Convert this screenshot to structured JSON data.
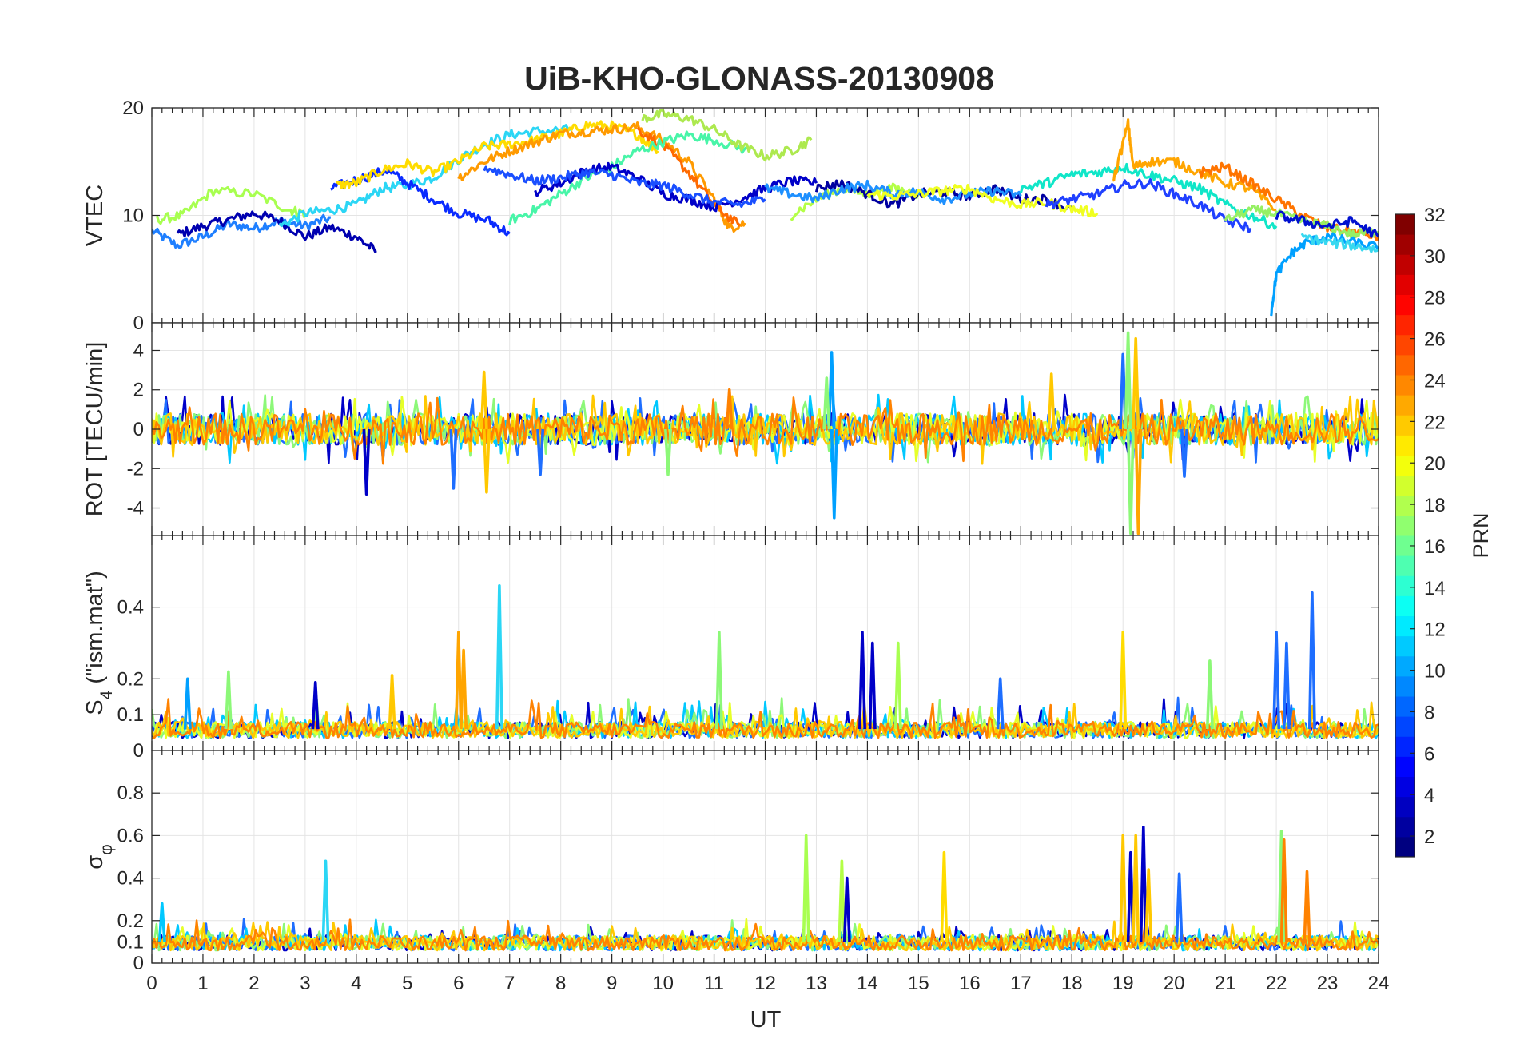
{
  "chart_data": [
    {
      "type": "line",
      "panel": "vtec",
      "title": "UiB-KHO-GLONASS-20130908",
      "xlabel": "",
      "ylabel": "VTEC",
      "xlim": [
        0,
        24
      ],
      "ylim": [
        0,
        20
      ],
      "yticks": [
        "0",
        "10",
        "20"
      ],
      "grid": true,
      "series": [
        {
          "color": "#1f7fff",
          "x": [
            0,
            0.5,
            1,
            1.5,
            2,
            2.5,
            3,
            3.5
          ],
          "y": [
            8.6,
            7.2,
            8.0,
            9.2,
            8.8,
            9.5,
            9.0,
            9.8
          ]
        },
        {
          "color": "#0000b0",
          "x": [
            0.5,
            1,
            1.5,
            2,
            2.5,
            3,
            3.5,
            4,
            4.4
          ],
          "y": [
            8.2,
            9.0,
            9.6,
            10.2,
            9.5,
            8.0,
            8.9,
            8.0,
            6.6
          ]
        },
        {
          "color": "#a8ff50",
          "x": [
            0.1,
            0.6,
            1.2,
            2.0,
            2.7,
            3.0
          ],
          "y": [
            9.6,
            10.0,
            12.3,
            12.0,
            10.5,
            10.2
          ]
        },
        {
          "color": "#2bd6f5",
          "x": [
            2.5,
            3,
            3.5,
            4,
            4.5,
            5,
            5.5,
            6,
            6.5,
            7,
            7.5,
            8.2
          ],
          "y": [
            9.0,
            10.2,
            10.5,
            11.0,
            12.5,
            12.8,
            13.5,
            15.2,
            16.6,
            17.5,
            17.8,
            18.0
          ]
        },
        {
          "color": "#0a2bff",
          "x": [
            3.5,
            4,
            4.6,
            5,
            5.5,
            6,
            6.6,
            7
          ],
          "y": [
            12.5,
            13.3,
            14.2,
            13.0,
            11.5,
            10.2,
            9.5,
            8.3
          ]
        },
        {
          "color": "#ffdc00",
          "x": [
            3.6,
            4,
            4.5,
            5,
            5.5,
            6,
            6.5,
            7,
            7.5,
            8,
            8.5,
            9,
            9.5,
            9.9
          ],
          "y": [
            12.8,
            13.0,
            14.2,
            14.8,
            14.0,
            15.0,
            16.4,
            16.6,
            17.0,
            17.6,
            18.4,
            18.3,
            17.5,
            16.0
          ]
        },
        {
          "color": "#ff9a00",
          "x": [
            6,
            6.5,
            7,
            7.5,
            8,
            8.5,
            9,
            9.5,
            10,
            10.5,
            11,
            11.3,
            11.6
          ],
          "y": [
            13.5,
            15.0,
            16.0,
            16.8,
            17.6,
            17.8,
            18.0,
            18.2,
            17.0,
            15.0,
            11.5,
            8.8,
            9.3
          ]
        },
        {
          "color": "#ff6a00",
          "x": [
            9.5,
            10,
            10.5,
            11,
            11.5
          ],
          "y": [
            18.0,
            16.5,
            14.0,
            11.0,
            9.0
          ]
        },
        {
          "color": "#48f5a8",
          "x": [
            7,
            7.5,
            8,
            8.5,
            9,
            9.5,
            10,
            10.5,
            11,
            11.7
          ],
          "y": [
            9.5,
            10.5,
            12.0,
            13.5,
            14.5,
            16.0,
            16.8,
            17.5,
            17.0,
            16.0
          ]
        },
        {
          "color": "#ade94f",
          "x": [
            9.6,
            10,
            10.5,
            11,
            11.5,
            12,
            12.5,
            12.9
          ],
          "y": [
            19.0,
            19.4,
            19.0,
            18.0,
            16.5,
            15.5,
            16.0,
            17.0
          ]
        },
        {
          "color": "#0000c8",
          "x": [
            7.5,
            8,
            8.5,
            9,
            9.5,
            10,
            10.5,
            11,
            11.5,
            12,
            12.5,
            13
          ],
          "y": [
            12.2,
            13.0,
            14.2,
            14.5,
            13.5,
            12.0,
            11.5,
            10.8,
            11.5,
            12.5,
            13.2,
            13.0
          ]
        },
        {
          "color": "#1a4fff",
          "x": [
            6.5,
            7,
            7.5,
            8,
            8.5,
            9,
            9.5,
            10,
            10.5,
            11,
            11.5,
            12
          ],
          "y": [
            14.5,
            13.8,
            13.2,
            13.5,
            14.0,
            13.8,
            13.0,
            12.8,
            12.0,
            11.2,
            11.0,
            11.5
          ]
        },
        {
          "color": "#b4ff46",
          "x": [
            12.5,
            13,
            13.5,
            14,
            14.5,
            15
          ],
          "y": [
            10.0,
            11.5,
            12.5,
            12.0,
            12.5,
            12.0
          ]
        },
        {
          "color": "#0000a0",
          "x": [
            13,
            13.5,
            14,
            14.5,
            15,
            15.5,
            16,
            16.5,
            17,
            17.5,
            18
          ],
          "y": [
            12.5,
            13.0,
            12.0,
            11.0,
            12.0,
            12.2,
            11.8,
            12.5,
            11.5,
            11.5,
            10.5
          ]
        },
        {
          "color": "#1e90ff",
          "x": [
            12,
            12.5,
            13,
            13.5,
            14,
            14.5,
            15,
            15.5,
            16,
            16.5,
            17
          ],
          "y": [
            12.5,
            12.0,
            11.5,
            12.5,
            12.8,
            12.0,
            12.2,
            11.5,
            12.0,
            12.3,
            11.8
          ]
        },
        {
          "color": "#f0ff20",
          "x": [
            14,
            14.5,
            15,
            15.5,
            16,
            16.5,
            17,
            17.5,
            18,
            18.5
          ],
          "y": [
            12.0,
            11.8,
            12.0,
            12.3,
            12.5,
            11.5,
            11.0,
            11.2,
            10.6,
            10.2
          ]
        },
        {
          "color": "#10e6c8",
          "x": [
            17,
            17.5,
            18,
            18.5,
            19,
            19.5,
            20,
            20.5,
            21,
            21.5,
            22
          ],
          "y": [
            12.5,
            13.0,
            13.8,
            14.0,
            14.5,
            13.8,
            13.2,
            12.5,
            11.0,
            10.0,
            9.0
          ]
        },
        {
          "color": "#2040ff",
          "x": [
            17.5,
            18,
            18.5,
            19,
            19.5,
            20,
            20.5,
            21,
            21.5
          ],
          "y": [
            11.0,
            11.5,
            12.0,
            12.8,
            13.0,
            12.0,
            11.0,
            9.5,
            8.8
          ]
        },
        {
          "color": "#ffa500",
          "x": [
            18.8,
            19.1,
            19.2,
            19.5,
            20,
            20.5,
            21,
            21.5,
            22
          ],
          "y": [
            13.0,
            18.5,
            14.5,
            15.0,
            15.0,
            14.0,
            13.0,
            12.5,
            10.5
          ]
        },
        {
          "color": "#ff7400",
          "x": [
            20.5,
            21,
            21.5,
            22,
            22.5,
            23,
            23.5,
            24
          ],
          "y": [
            14.0,
            14.5,
            13.0,
            11.5,
            10.0,
            8.8,
            8.5,
            8.0
          ]
        },
        {
          "color": "#96f064",
          "x": [
            21,
            21.5,
            22,
            22.5,
            23,
            23.5,
            24
          ],
          "y": [
            9.5,
            10.5,
            10.2,
            9.5,
            9.0,
            8.2,
            8.5
          ]
        },
        {
          "color": "#00a0ff",
          "x": [
            21.9,
            22,
            22.3,
            22.6,
            23,
            23.5,
            24
          ],
          "y": [
            1.0,
            4.5,
            6.5,
            7.5,
            8.0,
            7.5,
            7.0
          ]
        },
        {
          "color": "#0010d0",
          "x": [
            22,
            22.5,
            23,
            23.5,
            24
          ],
          "y": [
            10.0,
            9.5,
            9.0,
            9.5,
            8.0
          ]
        },
        {
          "color": "#38d8f0",
          "x": [
            22.5,
            23,
            23.5,
            24
          ],
          "y": [
            8.0,
            7.5,
            7.2,
            6.8
          ]
        }
      ]
    },
    {
      "type": "line",
      "panel": "rot",
      "xlabel": "",
      "ylabel": "ROT [TECU/min]",
      "xlim": [
        0,
        24
      ],
      "ylim": [
        -5.4,
        5.4
      ],
      "yticks": [
        "-4",
        "-2",
        "0",
        "2",
        "4"
      ],
      "grid": true,
      "noise_series_colors": [
        "#0000c8",
        "#1e6eff",
        "#00c8ff",
        "#8cf878",
        "#e6ff28",
        "#ffc800",
        "#ff8200"
      ],
      "spikes": [
        {
          "x": 4.2,
          "y": -3.3,
          "color": "#0000c8"
        },
        {
          "x": 5.9,
          "y": -3.0,
          "color": "#1e6eff"
        },
        {
          "x": 6.5,
          "y": 2.9,
          "color": "#ffc800"
        },
        {
          "x": 6.55,
          "y": -3.2,
          "color": "#ffc800"
        },
        {
          "x": 7.6,
          "y": -2.3,
          "color": "#1e6eff"
        },
        {
          "x": 10.1,
          "y": -2.3,
          "color": "#8cf878"
        },
        {
          "x": 11.3,
          "y": 2.0,
          "color": "#ff8200"
        },
        {
          "x": 13.3,
          "y": 3.9,
          "color": "#00a0ff"
        },
        {
          "x": 13.35,
          "y": -4.5,
          "color": "#00a0ff"
        },
        {
          "x": 13.2,
          "y": 2.6,
          "color": "#8cf878"
        },
        {
          "x": 17.6,
          "y": 2.8,
          "color": "#ffc800"
        },
        {
          "x": 19.0,
          "y": 3.8,
          "color": "#1e6eff"
        },
        {
          "x": 19.1,
          "y": 4.9,
          "color": "#8cf878"
        },
        {
          "x": 19.15,
          "y": -5.3,
          "color": "#8cf878"
        },
        {
          "x": 19.25,
          "y": 4.6,
          "color": "#ffc800"
        },
        {
          "x": 19.3,
          "y": -5.3,
          "color": "#ffa500"
        },
        {
          "x": 20.2,
          "y": -2.4,
          "color": "#1e6eff"
        }
      ]
    },
    {
      "type": "line",
      "panel": "s4",
      "xlabel": "",
      "ylabel": "S4 (\"ism.mat\")",
      "ylabel_main": "S",
      "ylabel_sub": "4",
      "ylabel_rest": " (\"ism.mat\")",
      "xlim": [
        0,
        24
      ],
      "ylim": [
        0,
        0.6
      ],
      "yticks": [
        "0",
        "0.1",
        "0.2",
        "0.4"
      ],
      "grid": true,
      "noise_series_colors": [
        "#0000c8",
        "#1e6eff",
        "#00c8ff",
        "#8cf878",
        "#e6ff28",
        "#ffc800",
        "#ff8200"
      ],
      "spikes": [
        {
          "x": 0.7,
          "y": 0.2,
          "color": "#00a0ff"
        },
        {
          "x": 1.5,
          "y": 0.22,
          "color": "#8cf878"
        },
        {
          "x": 3.2,
          "y": 0.19,
          "color": "#0000c8"
        },
        {
          "x": 4.7,
          "y": 0.21,
          "color": "#ffc800"
        },
        {
          "x": 6.0,
          "y": 0.33,
          "color": "#ffa500"
        },
        {
          "x": 6.1,
          "y": 0.28,
          "color": "#ffa500"
        },
        {
          "x": 6.8,
          "y": 0.46,
          "color": "#2bd6f5"
        },
        {
          "x": 11.1,
          "y": 0.33,
          "color": "#8cf878"
        },
        {
          "x": 13.9,
          "y": 0.33,
          "color": "#0000c8"
        },
        {
          "x": 14.1,
          "y": 0.3,
          "color": "#0000c8"
        },
        {
          "x": 14.6,
          "y": 0.3,
          "color": "#a8ff50"
        },
        {
          "x": 16.6,
          "y": 0.2,
          "color": "#1e6eff"
        },
        {
          "x": 19.0,
          "y": 0.33,
          "color": "#ffdc00"
        },
        {
          "x": 20.7,
          "y": 0.25,
          "color": "#8cf878"
        },
        {
          "x": 22.0,
          "y": 0.33,
          "color": "#1e6eff"
        },
        {
          "x": 22.2,
          "y": 0.3,
          "color": "#1e6eff"
        },
        {
          "x": 22.7,
          "y": 0.44,
          "color": "#1e6eff"
        }
      ]
    },
    {
      "type": "line",
      "panel": "sigma",
      "xlabel": "UT",
      "ylabel": "σφ",
      "ylabel_main": "σ",
      "ylabel_sub": "φ",
      "xlim": [
        0,
        24
      ],
      "ylim": [
        0,
        1
      ],
      "yticks": [
        "0",
        "0.1",
        "0.2",
        "0.4",
        "0.6",
        "0.8"
      ],
      "xticks": [
        "0",
        "1",
        "2",
        "3",
        "4",
        "5",
        "6",
        "7",
        "8",
        "9",
        "10",
        "11",
        "12",
        "13",
        "14",
        "15",
        "16",
        "17",
        "18",
        "19",
        "20",
        "21",
        "22",
        "23",
        "24"
      ],
      "grid": true,
      "noise_series_colors": [
        "#0000c8",
        "#1e6eff",
        "#00c8ff",
        "#8cf878",
        "#e6ff28",
        "#ffc800",
        "#ff8200"
      ],
      "spikes": [
        {
          "x": 0.2,
          "y": 0.28,
          "color": "#00c8ff"
        },
        {
          "x": 3.4,
          "y": 0.48,
          "color": "#2bd6f5"
        },
        {
          "x": 12.8,
          "y": 0.6,
          "color": "#a8ff50"
        },
        {
          "x": 13.5,
          "y": 0.48,
          "color": "#b4ff46"
        },
        {
          "x": 13.6,
          "y": 0.4,
          "color": "#0000c8"
        },
        {
          "x": 15.5,
          "y": 0.52,
          "color": "#ffdc00"
        },
        {
          "x": 19.0,
          "y": 0.6,
          "color": "#ffc800"
        },
        {
          "x": 19.15,
          "y": 0.52,
          "color": "#0000c8"
        },
        {
          "x": 19.25,
          "y": 0.6,
          "color": "#ffc800"
        },
        {
          "x": 19.4,
          "y": 0.64,
          "color": "#0000c8"
        },
        {
          "x": 19.5,
          "y": 0.44,
          "color": "#ffc800"
        },
        {
          "x": 20.1,
          "y": 0.42,
          "color": "#1e6eff"
        },
        {
          "x": 22.1,
          "y": 0.62,
          "color": "#8cf878"
        },
        {
          "x": 22.15,
          "y": 0.58,
          "color": "#ff8200"
        },
        {
          "x": 22.6,
          "y": 0.43,
          "color": "#ff8200"
        }
      ]
    }
  ],
  "colorbar": {
    "label": "PRN",
    "range": [
      1,
      32
    ],
    "ticks": [
      "2",
      "4",
      "6",
      "8",
      "10",
      "12",
      "14",
      "16",
      "18",
      "20",
      "22",
      "24",
      "26",
      "28",
      "30",
      "32"
    ]
  }
}
